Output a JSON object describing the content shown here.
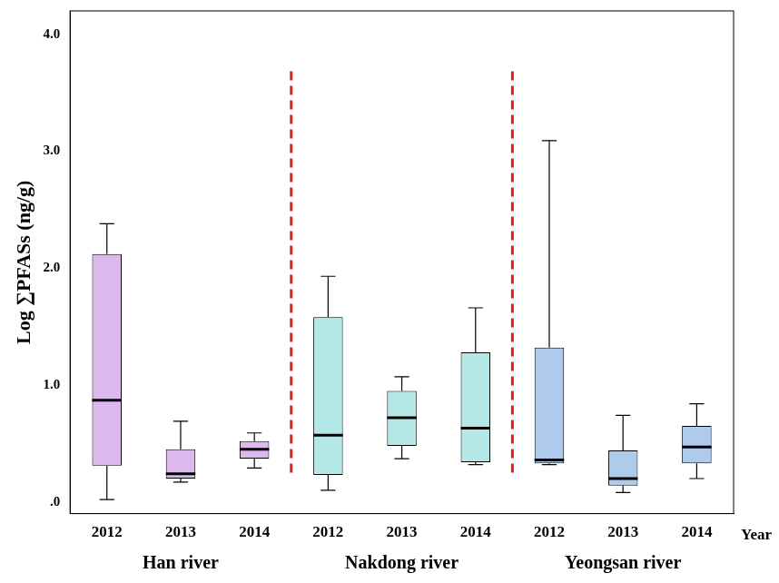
{
  "chart_data": {
    "type": "box",
    "y_label": "Log ∑PFASs (ng/g)",
    "x_label": "Year",
    "categories": [
      "2012",
      "2013",
      "2014",
      "2012",
      "2013",
      "2014",
      "2012",
      "2013",
      "2014"
    ],
    "groups": [
      "Han river",
      "Nakdong river",
      "Yeongsan river"
    ],
    "min": [
      0.02,
      0.17,
      0.29,
      0.1,
      0.37,
      0.32,
      0.32,
      0.08,
      0.2
    ],
    "q1": [
      0.31,
      0.2,
      0.37,
      0.23,
      0.48,
      0.34,
      0.33,
      0.14,
      0.33
    ],
    "median": [
      0.87,
      0.24,
      0.45,
      0.57,
      0.72,
      0.63,
      0.36,
      0.2,
      0.47
    ],
    "q3": [
      2.12,
      0.45,
      0.52,
      1.58,
      0.95,
      1.28,
      1.32,
      0.44,
      0.65
    ],
    "max": [
      2.38,
      0.69,
      0.59,
      1.93,
      1.07,
      1.66,
      3.09,
      0.74,
      0.84
    ],
    "colors": [
      "#dcb8ee",
      "#dcb8ee",
      "#dcb8ee",
      "#b3e8e6",
      "#b3e8e6",
      "#b3e8e6",
      "#aecbee",
      "#aecbee",
      "#aecbee"
    ],
    "ylim": [
      -0.1,
      4.2
    ],
    "yticks": [
      {
        "value": 0,
        "label": ".0"
      },
      {
        "value": 1,
        "label": "1.0"
      },
      {
        "value": 2,
        "label": "2.0"
      },
      {
        "value": 3,
        "label": "3.0"
      },
      {
        "value": 4,
        "label": "4.0"
      }
    ],
    "grid": false
  }
}
